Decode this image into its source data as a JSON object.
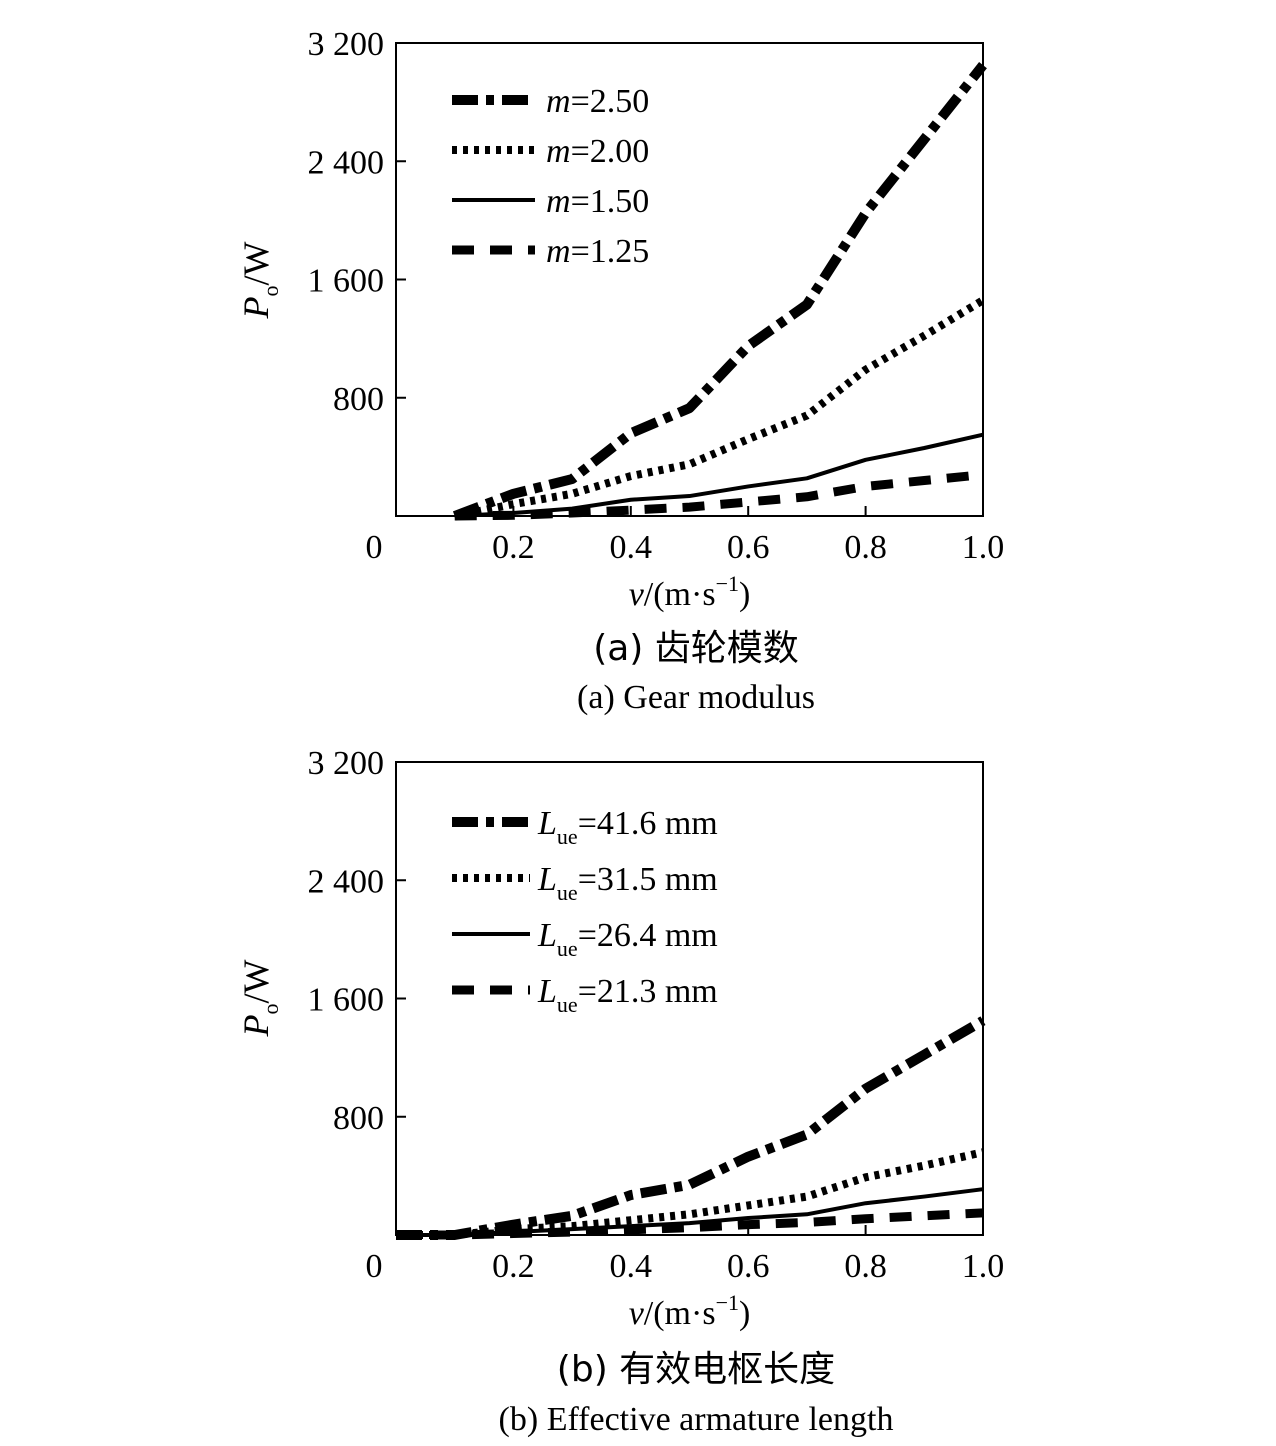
{
  "chart_data": [
    {
      "type": "line",
      "caption_cn": "(a) 齿轮模数",
      "caption_en": "(a) Gear modulus",
      "ylabel_main": "P",
      "ylabel_sub": "o",
      "ylabel_unit": "/W",
      "xlabel_main": "v",
      "xlabel_unit": "/(m·s",
      "xlabel_exp": "−1",
      "xlabel_close": ")",
      "xlim": [
        0,
        1.0
      ],
      "ylim": [
        0,
        3200
      ],
      "xticks": [
        0.2,
        0.4,
        0.6,
        0.8,
        1.0
      ],
      "xtick_labels": [
        "0.2",
        "0.4",
        "0.6",
        "0.8",
        "1.0"
      ],
      "yticks": [
        800,
        1600,
        2400,
        3200
      ],
      "ytick_labels": [
        "800",
        "1 600",
        "2 400",
        "3 200"
      ],
      "origin_label": "0",
      "legend_position": "top-left",
      "series": [
        {
          "label_var": "m",
          "label_sub": "",
          "label_rest": "=2.50",
          "style": "dashdot",
          "x": [
            0.1,
            0.2,
            0.3,
            0.4,
            0.5,
            0.6,
            0.7,
            0.8,
            0.9,
            1.0
          ],
          "y": [
            0,
            150,
            250,
            560,
            730,
            1150,
            1430,
            2050,
            2550,
            3050
          ]
        },
        {
          "label_var": "m",
          "label_sub": "",
          "label_rest": "=2.00",
          "style": "dotted",
          "x": [
            0.1,
            0.2,
            0.3,
            0.4,
            0.5,
            0.6,
            0.7,
            0.8,
            0.9,
            1.0
          ],
          "y": [
            0,
            80,
            150,
            270,
            350,
            520,
            680,
            990,
            1220,
            1460
          ]
        },
        {
          "label_var": "m",
          "label_sub": "",
          "label_rest": "=1.50",
          "style": "solid",
          "x": [
            0.1,
            0.2,
            0.3,
            0.4,
            0.5,
            0.6,
            0.7,
            0.8,
            0.9,
            1.0
          ],
          "y": [
            0,
            20,
            50,
            110,
            135,
            200,
            255,
            380,
            460,
            550
          ]
        },
        {
          "label_var": "m",
          "label_sub": "",
          "label_rest": "=1.25",
          "style": "dashed",
          "x": [
            0.1,
            0.2,
            0.3,
            0.4,
            0.5,
            0.6,
            0.7,
            0.8,
            0.9,
            1.0
          ],
          "y": [
            0,
            5,
            20,
            40,
            60,
            95,
            130,
            200,
            240,
            280
          ]
        }
      ]
    },
    {
      "type": "line",
      "caption_cn": "(b) 有效电枢长度",
      "caption_en": "(b) Effective armature length",
      "ylabel_main": "P",
      "ylabel_sub": "o",
      "ylabel_unit": "/W",
      "xlabel_main": "v",
      "xlabel_unit": "/(m·s",
      "xlabel_exp": "−1",
      "xlabel_close": ")",
      "xlim": [
        0,
        1.0
      ],
      "ylim": [
        0,
        3200
      ],
      "xticks": [
        0.2,
        0.4,
        0.6,
        0.8,
        1.0
      ],
      "xtick_labels": [
        "0.2",
        "0.4",
        "0.6",
        "0.8",
        "1.0"
      ],
      "yticks": [
        800,
        1600,
        2400,
        3200
      ],
      "ytick_labels": [
        "800",
        "1 600",
        "2 400",
        "3 200"
      ],
      "origin_label": "0",
      "legend_position": "top-left",
      "series": [
        {
          "label_var": "L",
          "label_sub": "ue",
          "label_rest": "=41.6 mm",
          "style": "dashdot",
          "x": [
            0.0,
            0.1,
            0.2,
            0.3,
            0.4,
            0.5,
            0.6,
            0.7,
            0.8,
            0.9,
            1.0
          ],
          "y": [
            0,
            0,
            70,
            130,
            270,
            340,
            530,
            680,
            990,
            1220,
            1450
          ]
        },
        {
          "label_var": "L",
          "label_sub": "ue",
          "label_rest": "=31.5 mm",
          "style": "dotted",
          "x": [
            0.0,
            0.1,
            0.2,
            0.3,
            0.4,
            0.5,
            0.6,
            0.7,
            0.8,
            0.9,
            1.0
          ],
          "y": [
            0,
            0,
            40,
            60,
            100,
            140,
            200,
            260,
            390,
            470,
            560
          ]
        },
        {
          "label_var": "L",
          "label_sub": "ue",
          "label_rest": "=26.4 mm",
          "style": "solid",
          "x": [
            0.0,
            0.1,
            0.2,
            0.3,
            0.4,
            0.5,
            0.6,
            0.7,
            0.8,
            0.9,
            1.0
          ],
          "y": [
            0,
            0,
            20,
            40,
            60,
            80,
            115,
            140,
            215,
            260,
            310
          ]
        },
        {
          "label_var": "L",
          "label_sub": "ue",
          "label_rest": "=21.3 mm",
          "style": "dashed",
          "x": [
            0.0,
            0.1,
            0.2,
            0.3,
            0.4,
            0.5,
            0.6,
            0.7,
            0.8,
            0.9,
            1.0
          ],
          "y": [
            0,
            0,
            10,
            20,
            35,
            50,
            70,
            85,
            110,
            130,
            150
          ]
        }
      ]
    }
  ]
}
